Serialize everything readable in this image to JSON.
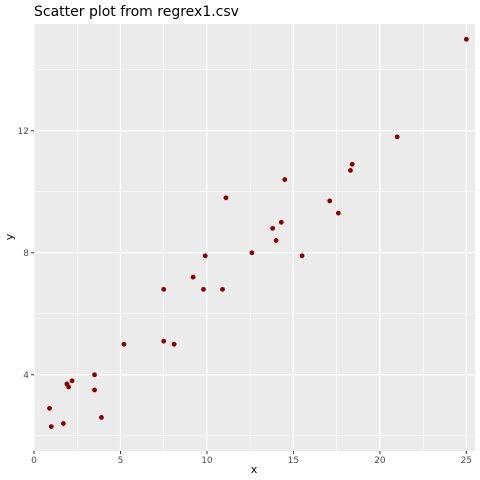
{
  "chart_data": {
    "type": "scatter",
    "title": "Scatter plot from regrex1.csv",
    "xlabel": "x",
    "ylabel": "y",
    "xlim": [
      0,
      25.5
    ],
    "ylim": [
      1.5,
      15.5
    ],
    "xticks": [
      0,
      5,
      10,
      15,
      20,
      25
    ],
    "yticks": [
      4,
      8,
      12
    ],
    "xtick_labels": [
      "0",
      "5",
      "10",
      "15",
      "20",
      "25"
    ],
    "ytick_labels": [
      "4",
      "8",
      "12"
    ],
    "grid": true,
    "point_color": "#8b0000",
    "panel_background": "#ebebeb",
    "grid_color": "#ffffff",
    "points": [
      {
        "x": 0.9,
        "y": 2.9
      },
      {
        "x": 1.0,
        "y": 2.3
      },
      {
        "x": 1.7,
        "y": 2.4
      },
      {
        "x": 1.9,
        "y": 3.7
      },
      {
        "x": 2.0,
        "y": 3.6
      },
      {
        "x": 2.2,
        "y": 3.8
      },
      {
        "x": 3.5,
        "y": 3.5
      },
      {
        "x": 3.5,
        "y": 4.0
      },
      {
        "x": 3.9,
        "y": 2.6
      },
      {
        "x": 5.2,
        "y": 5.0
      },
      {
        "x": 7.5,
        "y": 6.8
      },
      {
        "x": 7.5,
        "y": 5.1
      },
      {
        "x": 8.1,
        "y": 5.0
      },
      {
        "x": 9.2,
        "y": 7.2
      },
      {
        "x": 9.8,
        "y": 6.8
      },
      {
        "x": 9.9,
        "y": 7.9
      },
      {
        "x": 10.9,
        "y": 6.8
      },
      {
        "x": 11.1,
        "y": 9.8
      },
      {
        "x": 12.6,
        "y": 8.0
      },
      {
        "x": 13.8,
        "y": 8.8
      },
      {
        "x": 14.0,
        "y": 8.4
      },
      {
        "x": 14.3,
        "y": 9.0
      },
      {
        "x": 14.5,
        "y": 10.4
      },
      {
        "x": 15.5,
        "y": 7.9
      },
      {
        "x": 17.1,
        "y": 9.7
      },
      {
        "x": 17.6,
        "y": 9.3
      },
      {
        "x": 18.3,
        "y": 10.7
      },
      {
        "x": 18.4,
        "y": 10.9
      },
      {
        "x": 21.0,
        "y": 11.8
      },
      {
        "x": 25.0,
        "y": 15.0
      }
    ]
  }
}
